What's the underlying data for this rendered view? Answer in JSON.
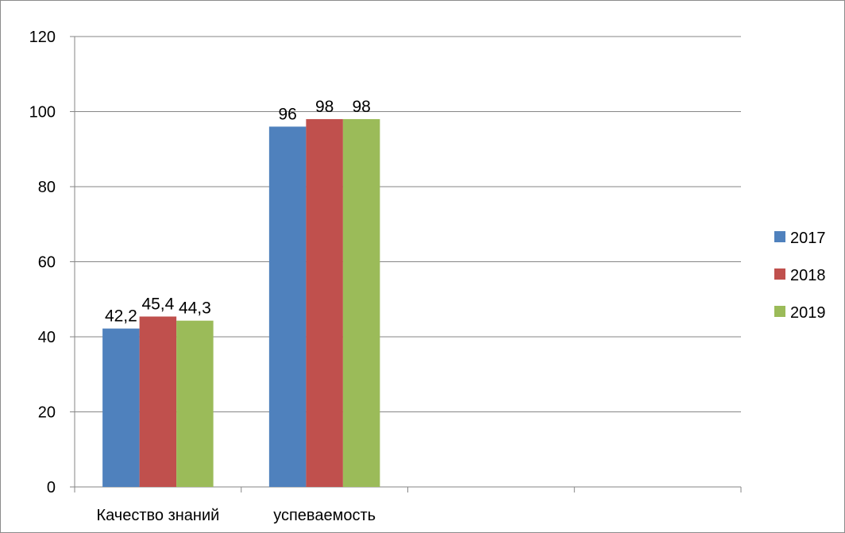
{
  "chart_data": {
    "type": "bar",
    "categories": [
      "Качество знаний",
      "успеваемость",
      "",
      ""
    ],
    "series": [
      {
        "name": "2017",
        "values": [
          42.2,
          96,
          null,
          null
        ],
        "labels": [
          "42,2",
          "96",
          "",
          ""
        ],
        "color": "#4f81bd"
      },
      {
        "name": "2018",
        "values": [
          45.4,
          98,
          null,
          null
        ],
        "labels": [
          "45,4",
          "98",
          "",
          ""
        ],
        "color": "#c0504d"
      },
      {
        "name": "2019",
        "values": [
          44.3,
          98,
          null,
          null
        ],
        "labels": [
          "44,3",
          "98",
          "",
          ""
        ],
        "color": "#9bbb59"
      }
    ],
    "yticks": [
      "0",
      "20",
      "40",
      "60",
      "80",
      "100",
      "120"
    ],
    "ylim": [
      0,
      120
    ],
    "grid": true,
    "legend": "right"
  }
}
